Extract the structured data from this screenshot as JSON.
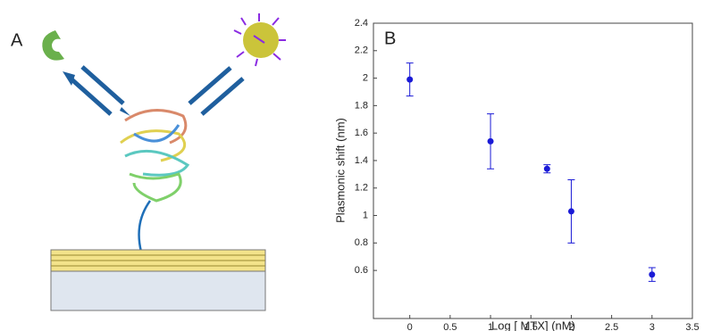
{
  "panel_labels": [
    "A",
    "B"
  ],
  "chart_data": {
    "type": "scatter",
    "xlabel": "Log [ MTX] (nM)",
    "ylabel": "Plasmonic shift (nm)",
    "x": [
      0,
      1,
      1.7,
      2,
      3
    ],
    "values": [
      1.99,
      1.54,
      1.34,
      1.03,
      0.57
    ],
    "errors": [
      0.12,
      0.2,
      0.03,
      0.23,
      0.05
    ],
    "color": "#1a1ad6",
    "xlim": [
      -0.45,
      3.5
    ],
    "ylim": [
      0.25,
      2.4
    ],
    "xticks": [
      0,
      0.5,
      1,
      1.5,
      2,
      2.5,
      3,
      3.5
    ],
    "yticks": [
      0.6,
      0.8,
      1,
      1.2,
      1.4,
      1.6,
      1.8,
      2,
      2.2,
      2.4
    ]
  }
}
